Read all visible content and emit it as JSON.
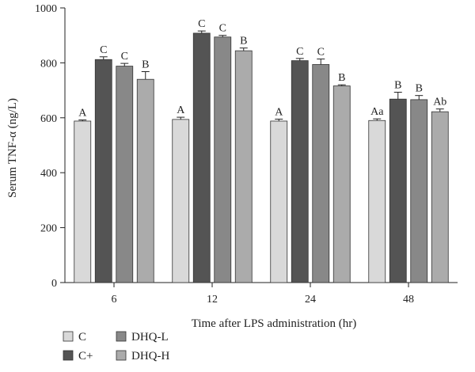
{
  "chart_data": {
    "type": "bar",
    "title": "",
    "ylabel": "Serum TNF-α (ng/L)",
    "xlabel": "Time after LPS administration (hr)",
    "ylim": [
      0,
      1000
    ],
    "yticks": [
      0,
      200,
      400,
      600,
      800,
      1000
    ],
    "categories": [
      "6",
      "12",
      "24",
      "48"
    ],
    "series": [
      {
        "name": "C",
        "color": "#d9d9d9",
        "values": [
          588,
          594,
          588,
          590
        ],
        "errors": [
          4,
          8,
          7,
          6
        ],
        "labels": [
          "A",
          "A",
          "A",
          "Aa"
        ]
      },
      {
        "name": "C+",
        "color": "#545454",
        "values": [
          812,
          908,
          808,
          668
        ],
        "errors": [
          10,
          8,
          8,
          25
        ],
        "labels": [
          "C",
          "C",
          "C",
          "B"
        ]
      },
      {
        "name": "DHQ-L",
        "color": "#888888",
        "values": [
          788,
          894,
          794,
          666
        ],
        "errors": [
          10,
          6,
          20,
          15
        ],
        "labels": [
          "C",
          "C",
          "C",
          "B"
        ]
      },
      {
        "name": "DHQ-H",
        "color": "#ababab",
        "values": [
          740,
          844,
          716,
          622
        ],
        "errors": [
          28,
          10,
          4,
          10
        ],
        "labels": [
          "B",
          "B",
          "B",
          "Ab"
        ]
      }
    ],
    "legend": {
      "placement": "bottom-left"
    }
  }
}
